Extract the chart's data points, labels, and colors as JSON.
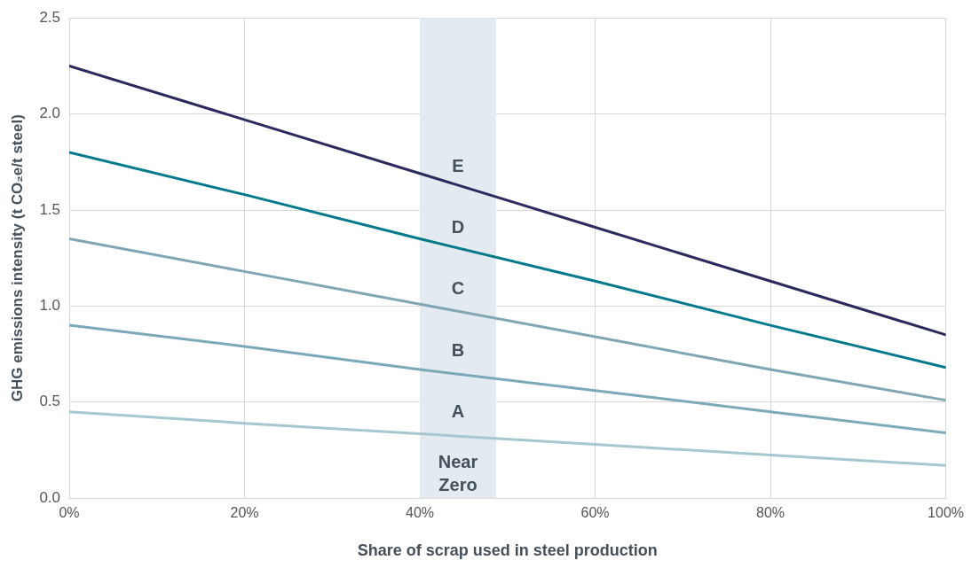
{
  "chart_data": {
    "type": "line",
    "xlabel": "Share of scrap used in steel production",
    "ylabel": "GHG emissions intensity (t CO₂e/t steel)",
    "x": [
      0,
      20,
      40,
      60,
      80,
      100
    ],
    "series": [
      {
        "color": "#2b2a5e",
        "values": [
          2.25,
          1.97,
          1.69,
          1.41,
          1.13,
          0.85
        ]
      },
      {
        "color": "#007a8a",
        "values": [
          1.8,
          1.58,
          1.35,
          1.13,
          0.9,
          0.68
        ]
      },
      {
        "color": "#7fa6b4",
        "values": [
          1.35,
          1.18,
          1.01,
          0.84,
          0.67,
          0.51
        ]
      },
      {
        "color": "#7aa9b8",
        "values": [
          0.9,
          0.79,
          0.67,
          0.56,
          0.45,
          0.34
        ]
      },
      {
        "color": "#a6c6d0",
        "values": [
          0.45,
          0.39,
          0.335,
          0.28,
          0.225,
          0.17
        ]
      }
    ],
    "xlim": [
      0,
      100
    ],
    "xticks": [
      {
        "value": 0,
        "label": "0%"
      },
      {
        "value": 20,
        "label": "20%"
      },
      {
        "value": 40,
        "label": "40%"
      },
      {
        "value": 60,
        "label": "60%"
      },
      {
        "value": 80,
        "label": "80%"
      },
      {
        "value": 100,
        "label": "100%"
      }
    ],
    "ylim": [
      0,
      2.5
    ],
    "yticks": [
      {
        "value": 0,
        "label": "0.0"
      },
      {
        "value": 0.5,
        "label": "0.5"
      },
      {
        "value": 1,
        "label": "1.0"
      },
      {
        "value": 1.5,
        "label": "1.5"
      },
      {
        "value": 2,
        "label": "2.0"
      },
      {
        "value": 2.5,
        "label": "2.5"
      }
    ],
    "bands": [
      {
        "axis": "x",
        "from": 40,
        "to": 48.7,
        "color": "#e3ebf1"
      }
    ],
    "annotations": [
      "E",
      "D",
      "C",
      "B",
      "A",
      "Near Zero"
    ],
    "grid": true,
    "legend": false,
    "marker": "none",
    "line_style": "solid"
  }
}
